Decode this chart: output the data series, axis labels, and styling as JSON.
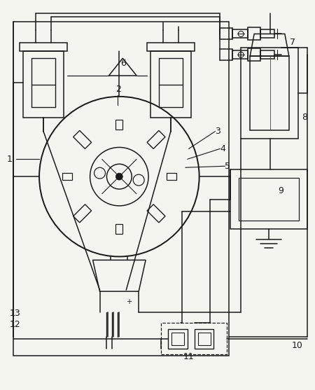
{
  "bg_color": "#f5f5f0",
  "line_color": "#1a1a1a",
  "lw": 1.1,
  "fig_w": 4.5,
  "fig_h": 5.57
}
